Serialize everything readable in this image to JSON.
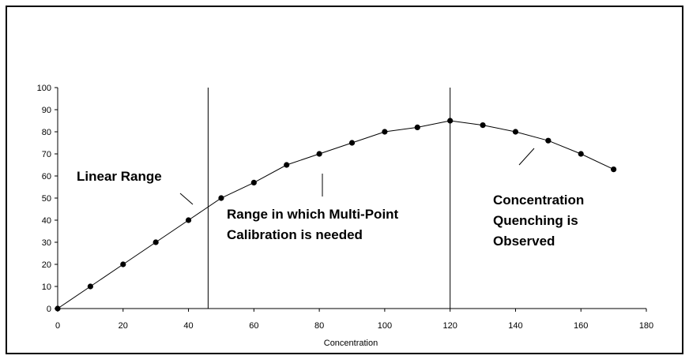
{
  "chart_data": {
    "type": "scatter",
    "title": "",
    "xlabel": "Concentration",
    "ylabel": "",
    "xlim": [
      0,
      180
    ],
    "ylim": [
      0,
      100
    ],
    "xticks": [
      "0",
      "20",
      "40",
      "60",
      "80",
      "100",
      "120",
      "140",
      "160",
      "180"
    ],
    "yticks": [
      "0",
      "10",
      "20",
      "30",
      "40",
      "50",
      "60",
      "70",
      "80",
      "90",
      "100"
    ],
    "grid": false,
    "legend": "none",
    "series": [
      {
        "x": [
          0,
          10,
          20,
          30,
          40,
          50,
          60,
          70,
          80,
          90,
          100,
          110,
          120,
          130,
          140,
          150,
          160,
          170
        ],
        "y": [
          0,
          10,
          20,
          30,
          40,
          50,
          57,
          65,
          70,
          75,
          80,
          82,
          85,
          83,
          80,
          76,
          70,
          63
        ]
      }
    ],
    "vertical_lines": [
      46,
      120
    ],
    "annotations": {
      "linear_range": [
        "Linear Range"
      ],
      "multi_point": [
        "Range in which Multi-Point",
        "Calibration is needed"
      ],
      "quenching": [
        "Concentration",
        "Quenching is",
        "Observed"
      ]
    },
    "colors": {
      "line": "#000000",
      "marker": "#000000",
      "background": "#ffffff"
    }
  }
}
